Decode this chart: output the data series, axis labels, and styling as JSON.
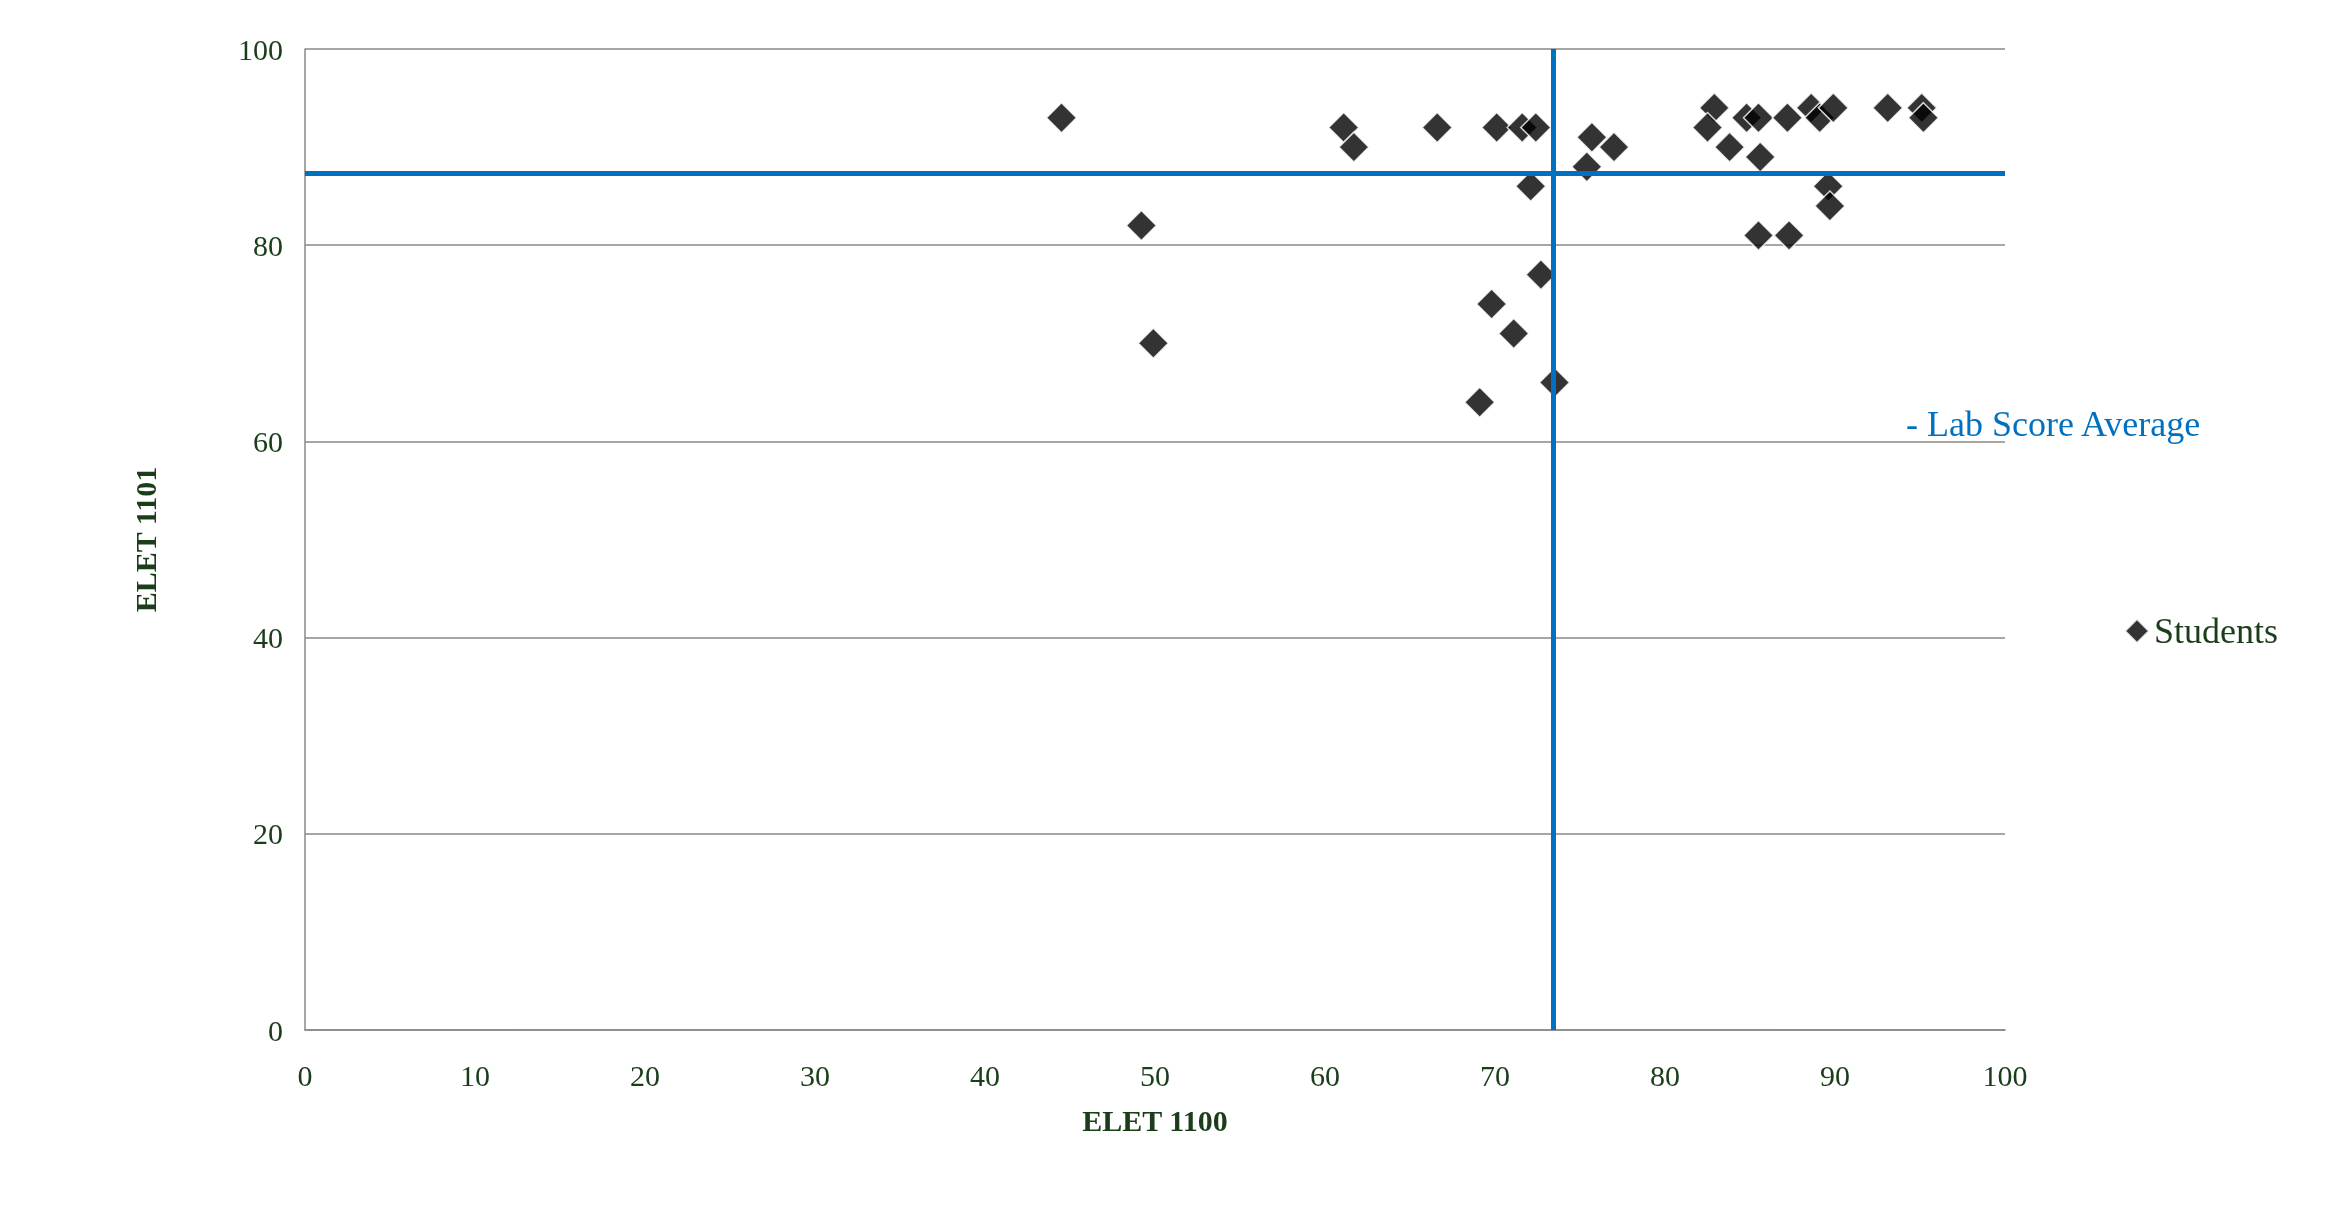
{
  "chart_data": {
    "type": "scatter",
    "xlabel": "ELET 1100",
    "ylabel": "ELET 1101",
    "series": [
      {
        "name": "Students",
        "color": "#000000",
        "marker": "diamond",
        "x": [
          44.5,
          49.2,
          49.9,
          61.1,
          61.7,
          66.6,
          70.1,
          71.6,
          72.4,
          72.1,
          72.7,
          69.8,
          71.1,
          69.1,
          73.5,
          75.4,
          75.7,
          77.0,
          82.9,
          82.5,
          83.8,
          84.8,
          85.5,
          85.6,
          85.5,
          87.3,
          87.2,
          88.6,
          89.1,
          89.9,
          89.6,
          89.7,
          93.1,
          95.1,
          95.2
        ],
        "values": [
          93,
          82,
          70,
          92,
          90,
          92,
          92,
          92,
          92,
          86,
          77,
          74,
          71,
          64,
          66,
          88,
          91,
          90,
          94,
          92,
          90,
          93,
          93,
          89,
          81,
          81,
          93,
          94,
          93,
          94,
          86,
          84,
          94,
          94,
          93
        ]
      }
    ],
    "xlim": [
      0,
      100
    ],
    "xticks": [
      0,
      10,
      20,
      30,
      40,
      50,
      60,
      70,
      80,
      90,
      100
    ],
    "ylim": [
      0,
      100
    ],
    "yticks": [
      0,
      20,
      40,
      60,
      80,
      100
    ],
    "grid": "y",
    "legend": "right",
    "ref_lines": [
      {
        "axis": "y",
        "value": 87.3,
        "color": "#0070c0"
      },
      {
        "axis": "x",
        "value": 73.4,
        "color": "#0070c0"
      }
    ],
    "annotations": [
      "- Lab Score Average"
    ]
  }
}
